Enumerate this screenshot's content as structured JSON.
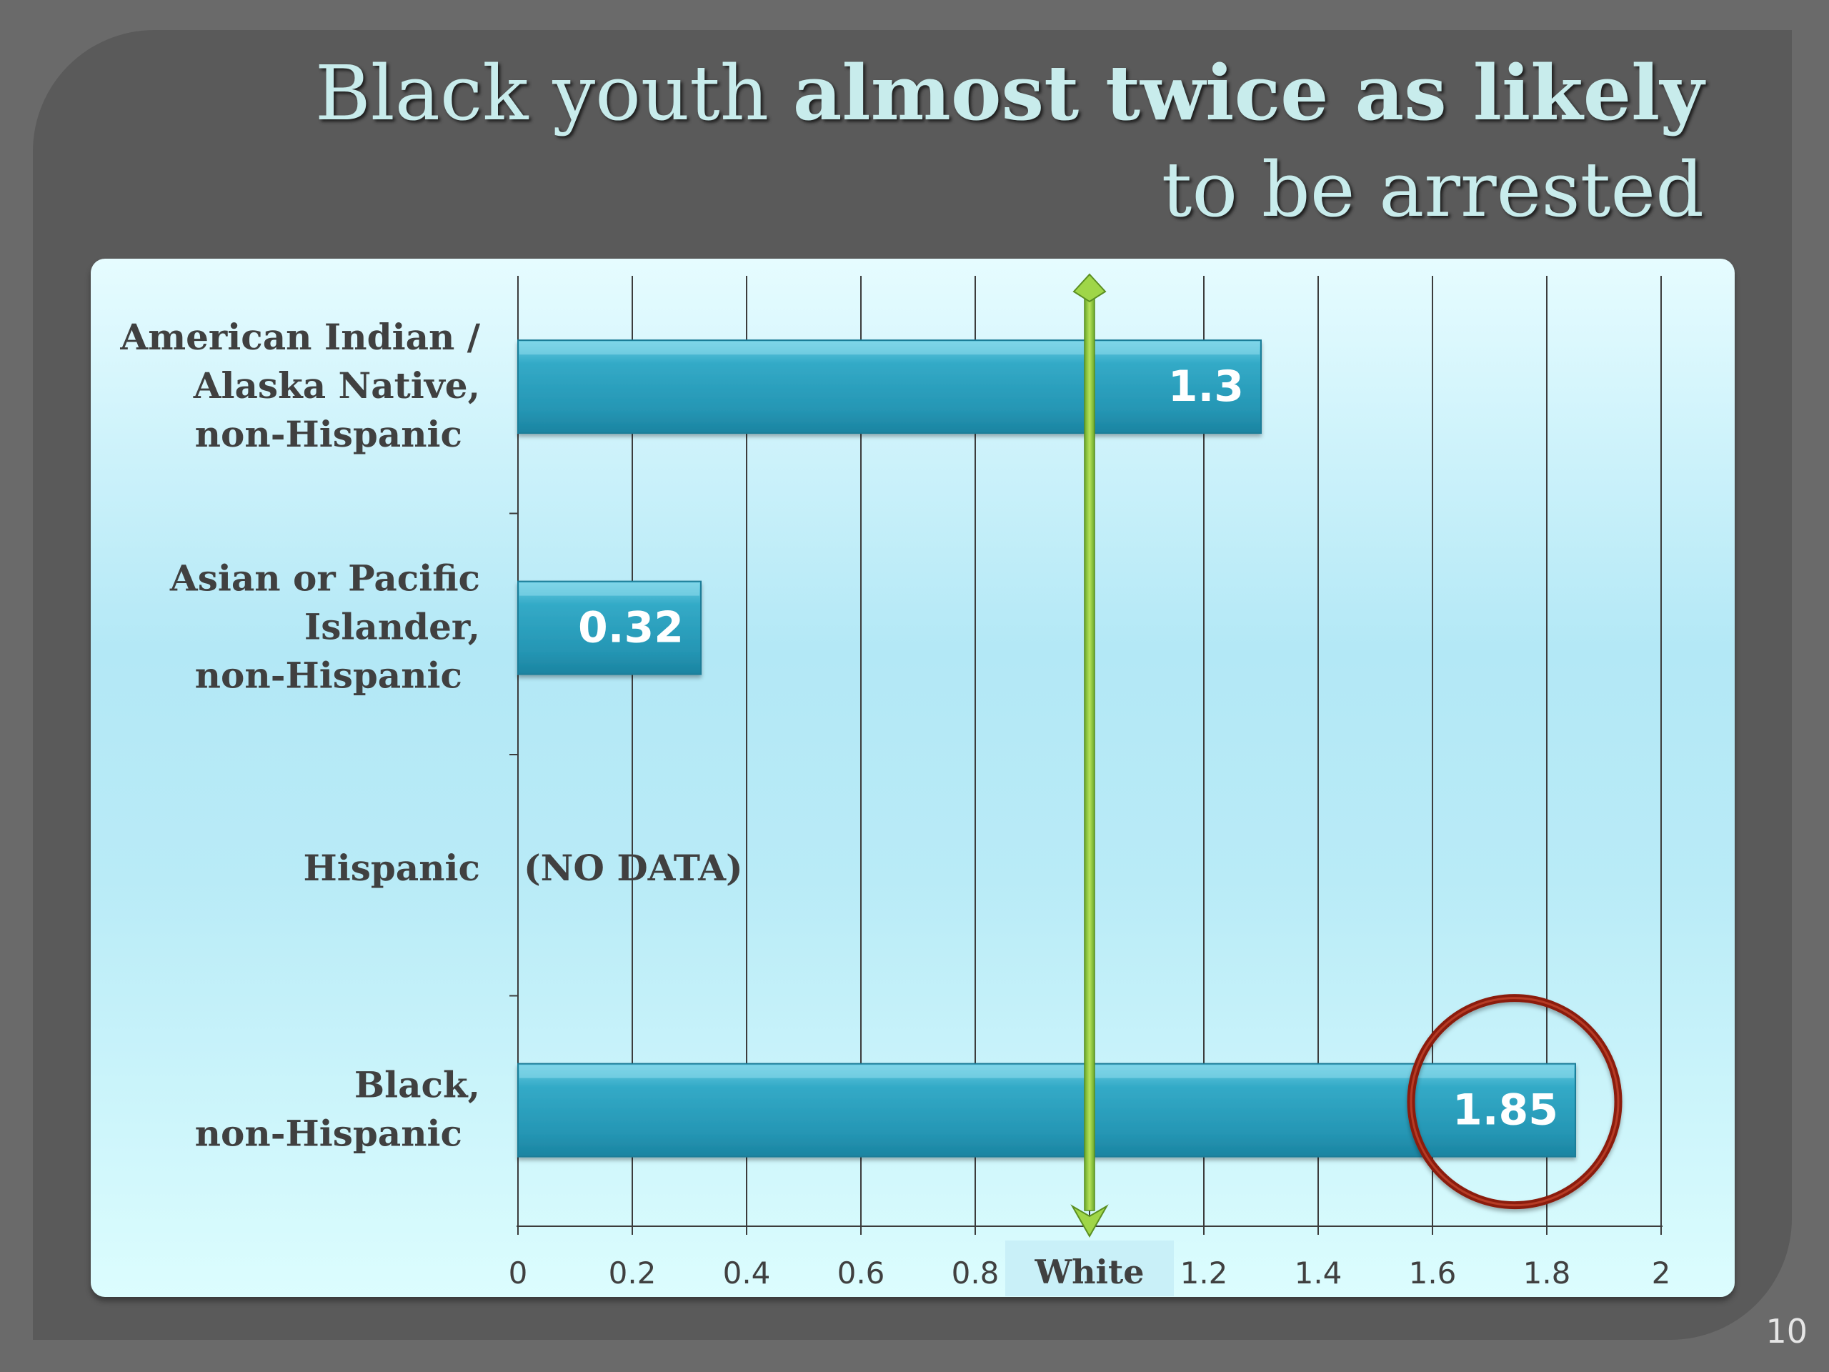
{
  "slide": {
    "title_part1": "Black youth ",
    "title_part2": "almost twice as likely",
    "title_line2": "to be arrested",
    "page_number": "10"
  },
  "chart_data": {
    "type": "bar",
    "orientation": "horizontal",
    "title": "",
    "xlabel": "",
    "ylabel": "",
    "xlim": [
      0,
      2
    ],
    "categories": [
      [
        "American Indian /",
        "Alaska Native,",
        "non-Hispanic"
      ],
      [
        "Asian or Pacific",
        "Islander,",
        "non-Hispanic"
      ],
      [
        "Hispanic"
      ],
      [
        "Black,",
        "non-Hispanic"
      ]
    ],
    "values": [
      1.3,
      0.32,
      null,
      1.85
    ],
    "data_labels": [
      "1.3",
      "0.32",
      "(NO  DATA)",
      "1.85"
    ],
    "x_tick_labels": [
      "0",
      "0.2",
      "0.4",
      "0.6",
      "0.8",
      "White",
      "1.2",
      "1.4",
      "1.6",
      "1.8",
      "2"
    ],
    "reference_line": {
      "value": 1.0,
      "label": "White",
      "color": "#8cc63f"
    },
    "highlight": {
      "category_index": 3,
      "shape": "circle",
      "color": "#8b1e10"
    },
    "grid": true,
    "legend": "none",
    "colors": {
      "bar": "#2da3c1",
      "bar_light": "#5fc4dc",
      "text": "#404040",
      "label": "#ffffff"
    }
  }
}
